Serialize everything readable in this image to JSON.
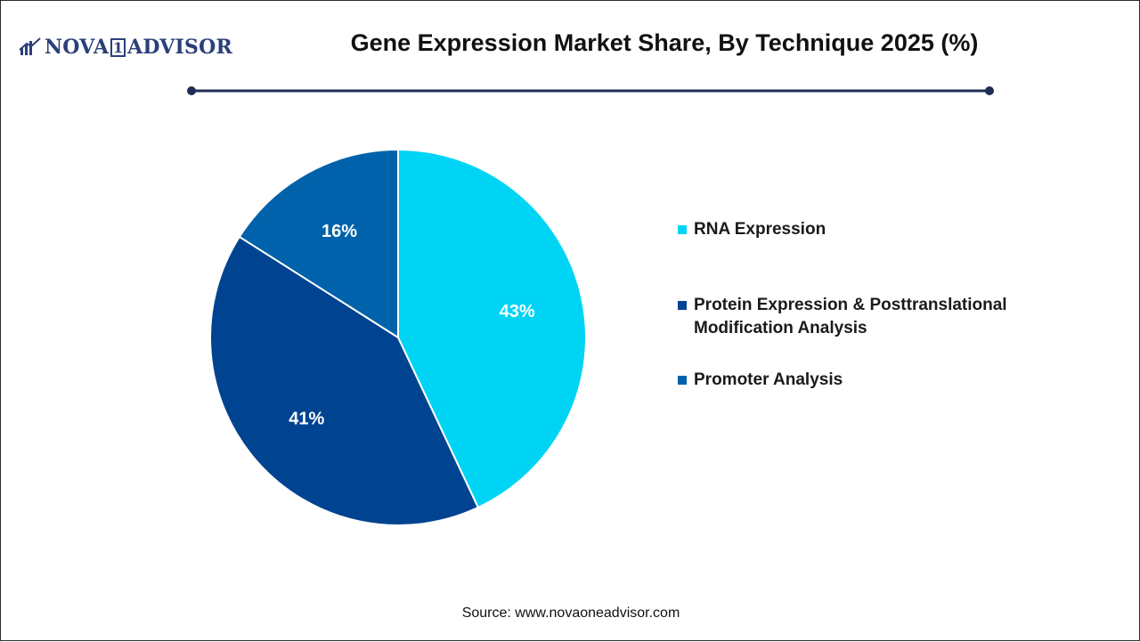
{
  "logo": {
    "brand_left": "NOVA",
    "brand_one": "1",
    "brand_right": "ADVISOR"
  },
  "title": "Gene Expression Market Share, By Technique 2025 (%)",
  "source": "Source: www.novaoneadvisor.com",
  "colors": {
    "rna": "#00d4f5",
    "protein": "#004391",
    "promoter": "#0062ab",
    "rule": "#1f2d55"
  },
  "chart_data": {
    "type": "pie",
    "title": "Gene Expression Market Share, By Technique 2025 (%)",
    "categories": [
      "RNA Expression",
      "Protein Expression & Posttranslational Modification Analysis",
      "Promoter Analysis"
    ],
    "values": [
      43,
      41,
      16
    ],
    "labels": [
      "43%",
      "41%",
      "16%"
    ],
    "colors": [
      "#00d4f5",
      "#004391",
      "#0062ab"
    ],
    "start": "12 o'clock",
    "direction": "clockwise",
    "legend_position": "right"
  },
  "legend": [
    {
      "label": "RNA Expression",
      "color": "#00d4f5"
    },
    {
      "label": "Protein Expression & Posttranslational Modification Analysis",
      "color": "#004391"
    },
    {
      "label": "Promoter Analysis",
      "color": "#0062ab"
    }
  ]
}
